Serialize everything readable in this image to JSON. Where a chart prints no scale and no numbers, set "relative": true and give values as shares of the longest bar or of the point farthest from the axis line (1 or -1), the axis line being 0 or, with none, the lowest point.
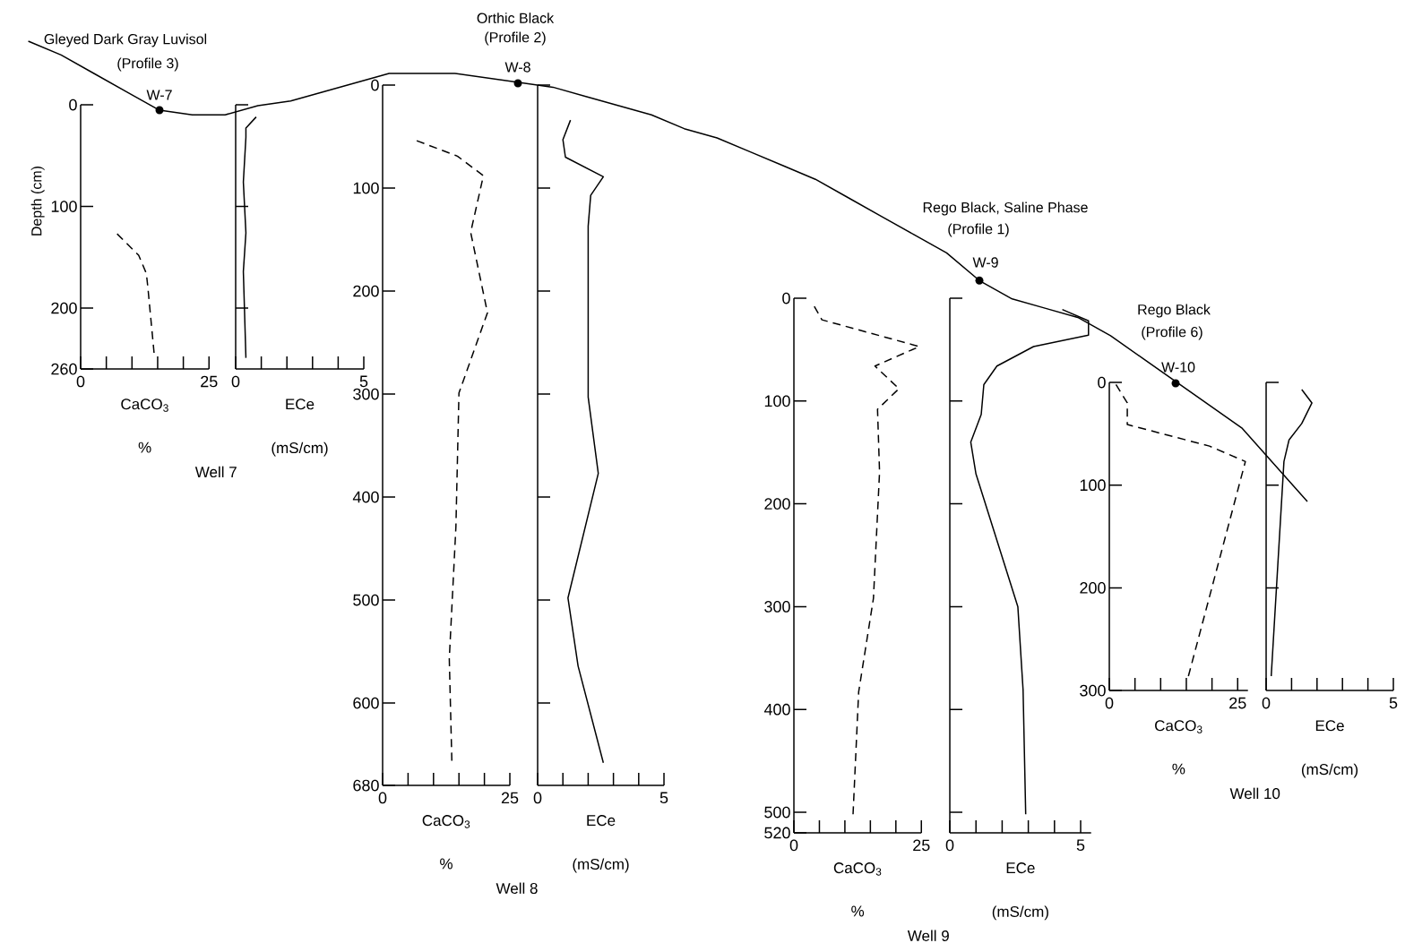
{
  "chart_data": [
    {
      "type": "line",
      "relative": true,
      "categories": [
        null,
        null,
        null,
        null,
        null,
        null,
        null,
        null,
        null,
        null,
        null,
        null,
        null,
        null,
        null,
        null,
        null,
        null,
        null,
        null,
        null,
        null,
        null,
        null,
        null,
        null,
        null,
        null,
        null,
        null,
        null,
        null,
        null,
        null,
        null,
        null,
        null,
        null,
        null,
        null
      ],
      "series": [
        {
          "color": "#000000",
          "values": [
            1,
            0.97,
            0.93,
            0.89,
            0.85,
            0.84,
            0.84,
            0.86,
            0.87,
            0.89,
            0.91,
            0.93,
            0.93,
            0.93,
            0.92,
            0.91,
            0.9,
            0.88,
            0.86,
            0.84,
            0.81,
            0.79,
            0.76,
            0.73,
            0.7,
            0.66,
            0.62,
            0.58,
            0.54,
            0.48,
            0.44,
            0.42,
            0.4,
            0.36,
            0.31,
            0.26,
            0.21,
            0.16,
            0.08,
            0
          ]
        }
      ],
      "annotations": [
        "Gleyed Dark Gray Luvisol",
        "(Profile 3)",
        "W-7",
        "Orthic Black",
        "(Profile 2)",
        "W-8",
        "Rego Black, Saline Phase",
        "(Profile 1)",
        "W-9",
        "Rego Black",
        "(Profile 6)",
        "W-10"
      ]
    },
    {
      "type": "line",
      "x": [
        7.1,
        11.3,
        12.8,
        13.1,
        14.3
      ],
      "values": [
        127,
        148,
        166,
        180,
        244
      ],
      "color": "#000000",
      "line_style": "dashed",
      "xlim": [
        0,
        25
      ],
      "ylim": [
        260,
        0
      ],
      "xticks": [
        0,
        {
          "value": 5,
          "label": null
        },
        {
          "value": 10,
          "label": null
        },
        {
          "value": 15,
          "label": null
        },
        {
          "value": 20,
          "label": null
        },
        25
      ],
      "yticks": [
        0,
        100,
        200,
        260
      ],
      "xlabel": "CaCO$_{3}$",
      "ylabel": "Depth (cm)",
      "annotations": [
        "%",
        "Well 7"
      ]
    },
    {
      "type": "line",
      "x": [
        0.8,
        0.4,
        0.4,
        0.3,
        0.4,
        0.3,
        0.4
      ],
      "values": [
        12,
        23,
        32,
        76,
        126,
        164,
        249
      ],
      "color": "#000000",
      "line_style": "solid",
      "xlim": [
        0,
        5
      ],
      "ylim": [
        260,
        0
      ],
      "xticks": [
        0,
        {
          "value": 1,
          "label": null
        },
        {
          "value": 2,
          "label": null
        },
        {
          "value": 3,
          "label": null
        },
        {
          "value": 4,
          "label": null
        },
        5
      ],
      "yticks": [
        {
          "value": 0,
          "label": null
        },
        {
          "value": 100,
          "label": null
        },
        {
          "value": 200,
          "label": null
        }
      ],
      "tick_labels": "x",
      "xlabel": "ECe",
      "annotations": [
        "(mS/cm)"
      ]
    },
    {
      "type": "line",
      "x": [
        6.7,
        14.7,
        19.8,
        17.3,
        20.6,
        15,
        14.4,
        13.1,
        13.6
      ],
      "values": [
        54,
        69,
        88,
        143,
        221,
        299,
        429,
        557,
        656
      ],
      "color": "#000000",
      "line_style": "dashed",
      "xlim": [
        0,
        25
      ],
      "ylim": [
        680,
        0
      ],
      "xticks": [
        0,
        {
          "value": 5,
          "label": null
        },
        {
          "value": 10,
          "label": null
        },
        {
          "value": 15,
          "label": null
        },
        {
          "value": 20,
          "label": null
        },
        25
      ],
      "yticks": [
        0,
        100,
        200,
        300,
        400,
        500,
        600,
        680
      ],
      "xlabel": "CaCO$_{3}$",
      "annotations": [
        "%",
        "Well 8"
      ]
    },
    {
      "type": "line",
      "x": [
        1.3,
        1,
        1.1,
        2.6,
        2.1,
        2,
        2,
        2.4,
        1.2,
        1.6,
        2.6
      ],
      "values": [
        34,
        53,
        70,
        89,
        107,
        137,
        303,
        377,
        498,
        564,
        658
      ],
      "color": "#000000",
      "line_style": "solid",
      "xlim": [
        0,
        5
      ],
      "ylim": [
        680,
        0
      ],
      "xticks": [
        0,
        {
          "value": 1,
          "label": null
        },
        {
          "value": 2,
          "label": null
        },
        {
          "value": 3,
          "label": null
        },
        {
          "value": 4,
          "label": null
        },
        5
      ],
      "yticks": [
        {
          "value": 0,
          "label": null
        },
        {
          "value": 100,
          "label": null
        },
        {
          "value": 200,
          "label": null
        },
        {
          "value": 300,
          "label": null
        },
        {
          "value": 400,
          "label": null
        },
        {
          "value": 500,
          "label": null
        },
        {
          "value": 600,
          "label": null
        }
      ],
      "tick_labels": "x",
      "xlabel": "ECe",
      "annotations": [
        "(mS/cm)"
      ]
    },
    {
      "type": "line",
      "x": [
        4,
        5.5,
        24.6,
        15.9,
        20.6,
        16.4,
        16.8,
        15.6,
        12.7,
        11.6
      ],
      "values": [
        8,
        21,
        47,
        66,
        88,
        108,
        169,
        292,
        383,
        502
      ],
      "color": "#000000",
      "line_style": "dashed",
      "xlim": [
        0,
        25
      ],
      "ylim": [
        520,
        0
      ],
      "xticks": [
        0,
        {
          "value": 5,
          "label": null
        },
        {
          "value": 10,
          "label": null
        },
        {
          "value": 15,
          "label": null
        },
        {
          "value": 20,
          "label": null
        },
        25
      ],
      "yticks": [
        0,
        100,
        200,
        300,
        400,
        500,
        520
      ],
      "xlabel": "CaCO$_{3}$",
      "annotations": [
        "%",
        "Well 9"
      ]
    },
    {
      "type": "line",
      "x": [
        4.3,
        5.3,
        5.3,
        3.2,
        1.8,
        1.3,
        1.2,
        0.8,
        1,
        2.6,
        2.8,
        2.9
      ],
      "values": [
        11,
        22,
        36,
        47,
        66,
        84,
        113,
        140,
        171,
        300,
        381,
        502
      ],
      "color": "#000000",
      "line_style": "solid",
      "xlim": [
        0,
        5.4
      ],
      "ylim": [
        520,
        0
      ],
      "xticks": [
        0,
        {
          "value": 1,
          "label": null
        },
        {
          "value": 2,
          "label": null
        },
        {
          "value": 3,
          "label": null
        },
        {
          "value": 4,
          "label": null
        },
        5
      ],
      "yticks": [
        {
          "value": 0,
          "label": null
        },
        {
          "value": 100,
          "label": null
        },
        {
          "value": 200,
          "label": null
        },
        {
          "value": 300,
          "label": null
        },
        {
          "value": 400,
          "label": null
        },
        {
          "value": 500,
          "label": null
        }
      ],
      "tick_labels": "x",
      "xlabel": "ECe",
      "annotations": [
        "(mS/cm)"
      ]
    },
    {
      "type": "line",
      "x": [
        1.3,
        3.5,
        3.5,
        19.5,
        26.5,
        15.4
      ],
      "values": [
        2,
        20,
        41,
        62,
        77,
        286
      ],
      "color": "#000000",
      "line_style": "dashed",
      "xlim": [
        0,
        27
      ],
      "ylim": [
        300,
        0
      ],
      "xticks": [
        0,
        {
          "value": 5,
          "label": null
        },
        {
          "value": 10,
          "label": null
        },
        {
          "value": 15,
          "label": null
        },
        {
          "value": 20,
          "label": null
        },
        25
      ],
      "yticks": [
        0,
        100,
        200,
        300
      ],
      "xlabel": "CaCO$_{3}$",
      "annotations": [
        "%",
        "Well 10"
      ]
    },
    {
      "type": "line",
      "x": [
        1.4,
        1.8,
        1.4,
        0.9,
        0.7,
        0.2
      ],
      "values": [
        7,
        20,
        40,
        56,
        77,
        286
      ],
      "color": "#000000",
      "line_style": "solid",
      "xlim": [
        0,
        5
      ],
      "ylim": [
        300,
        0
      ],
      "xticks": [
        0,
        {
          "value": 1,
          "label": null
        },
        {
          "value": 2,
          "label": null
        },
        {
          "value": 3,
          "label": null
        },
        {
          "value": 4,
          "label": null
        },
        5
      ],
      "yticks": [
        {
          "value": 0,
          "label": null
        },
        {
          "value": 100,
          "label": null
        },
        {
          "value": 200,
          "label": null
        }
      ],
      "tick_labels": "x",
      "xlabel": "ECe",
      "annotations": [
        "(mS/cm)"
      ]
    }
  ]
}
